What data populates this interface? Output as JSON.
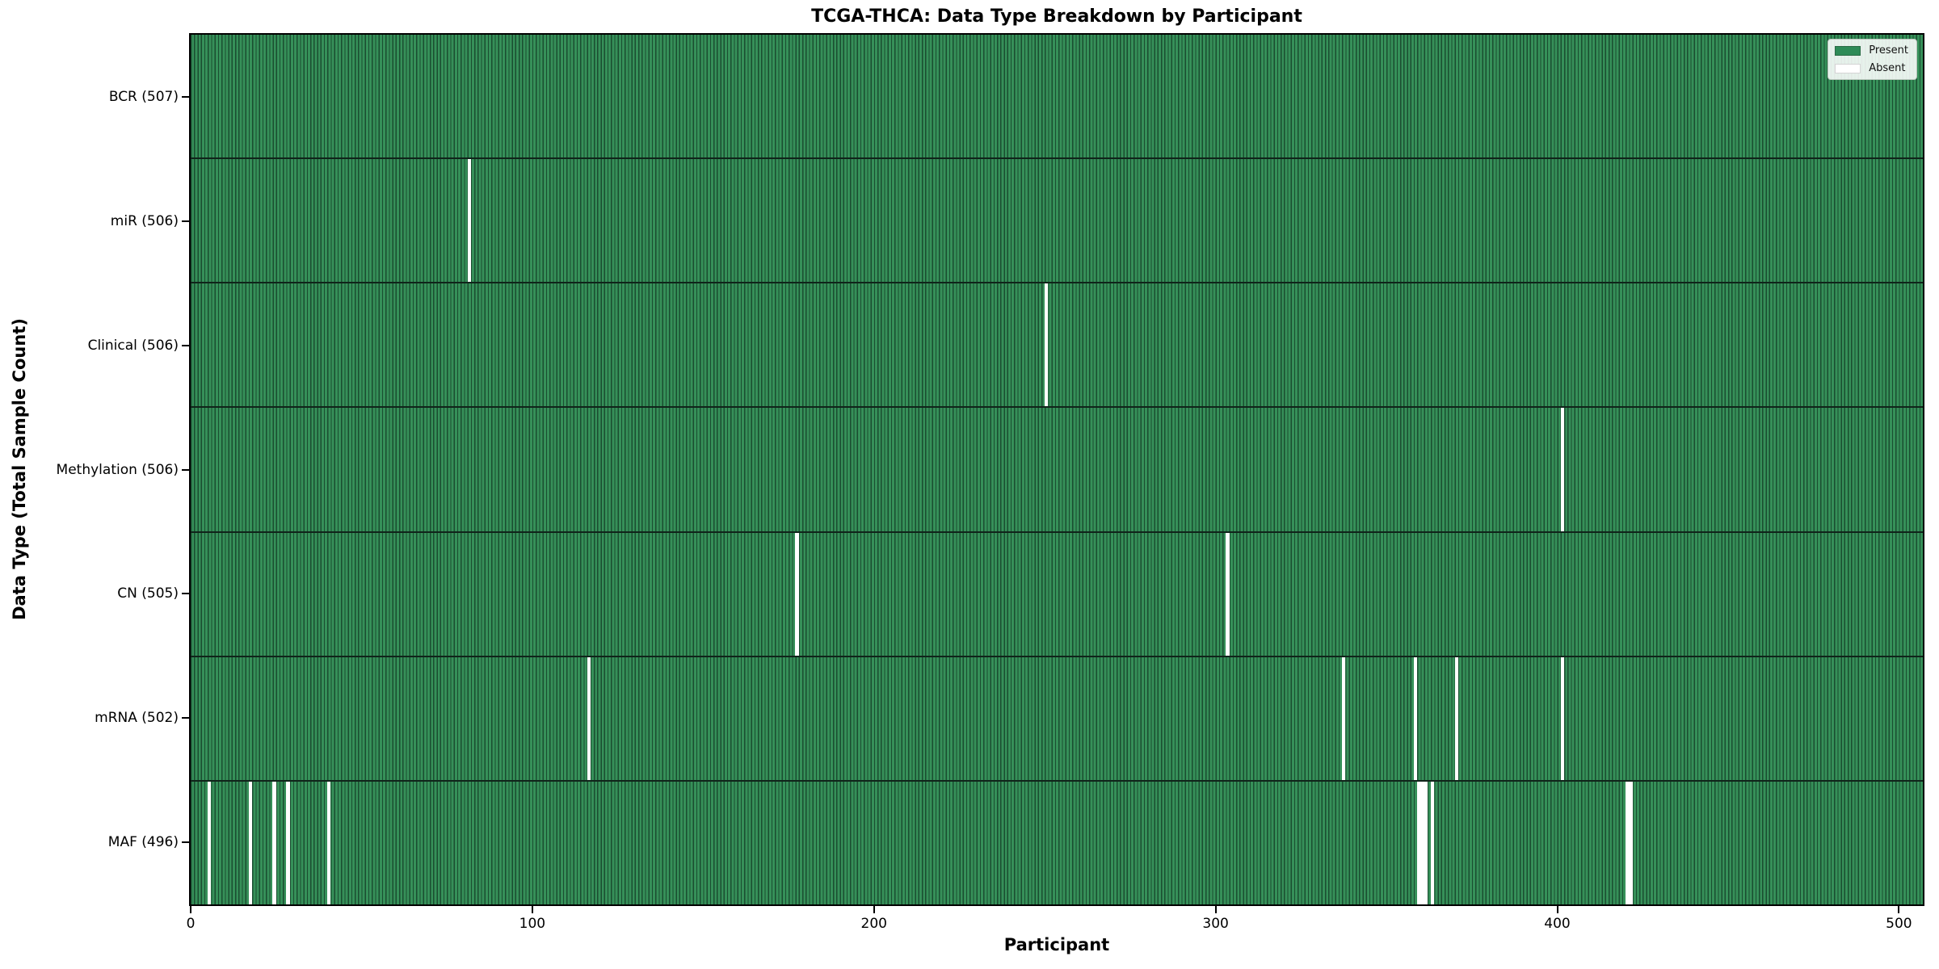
{
  "chart_data": {
    "type": "heatmap",
    "title": "TCGA-THCA: Data Type Breakdown by Participant",
    "xlabel": "Participant",
    "ylabel": "Data Type (Total Sample Count)",
    "x_ticks": [
      "0",
      "100",
      "200",
      "300",
      "400",
      "500"
    ],
    "x_tick_values": [
      0,
      100,
      200,
      300,
      400,
      500
    ],
    "xlim": [
      0,
      507
    ],
    "total_participants": 507,
    "grid": false,
    "legend": {
      "position": "upper right",
      "items": [
        {
          "label": "Present",
          "color": "#2e8b57"
        },
        {
          "label": "Absent",
          "color": "#ffffff"
        }
      ]
    },
    "series": [
      {
        "name": "BCR",
        "count": 507,
        "label": "BCR (507)",
        "absent_participants": []
      },
      {
        "name": "miR",
        "count": 506,
        "label": "miR (506)",
        "absent_participants": [
          81
        ]
      },
      {
        "name": "Clinical",
        "count": 506,
        "label": "Clinical (506)",
        "absent_participants": [
          250
        ]
      },
      {
        "name": "Methylation",
        "count": 506,
        "label": "Methylation (506)",
        "absent_participants": [
          401
        ]
      },
      {
        "name": "CN",
        "count": 505,
        "label": "CN (505)",
        "absent_participants": [
          177,
          303
        ]
      },
      {
        "name": "mRNA",
        "count": 502,
        "label": "mRNA (502)",
        "absent_participants": [
          116,
          337,
          358,
          370,
          401
        ]
      },
      {
        "name": "MAF",
        "count": 496,
        "label": "MAF (496)",
        "absent_participants": [
          5,
          17,
          24,
          28,
          40,
          359,
          360,
          361,
          363,
          420,
          421
        ]
      }
    ],
    "colors": {
      "present_fill": "#369059",
      "bar_edge": "#1a4d30",
      "absent_fill": "#ffffff",
      "row_divider": "#10241a",
      "spine": "#000000"
    }
  }
}
